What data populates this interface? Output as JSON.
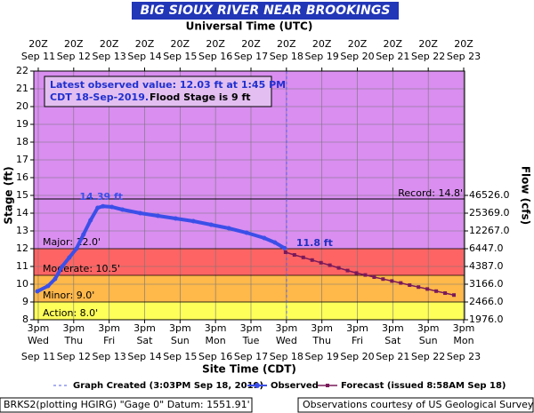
{
  "chart_data": {
    "type": "hydrograph",
    "title": "BIG SIOUX RIVER NEAR BROOKINGS",
    "top_axis_title": "Universal Time (UTC)",
    "x_axis_title": "Site Time (CDT)",
    "y_axis_title": "Stage (ft)",
    "y2_axis_title": "Flow (cfs)",
    "xlim": [
      11.5,
      23.65
    ],
    "xticks": [
      {
        "value": 11.625,
        "label": "3pm"
      },
      {
        "value": 12.625,
        "label": "3pm"
      },
      {
        "value": 13.625,
        "label": "3pm"
      },
      {
        "value": 14.625,
        "label": "3pm"
      },
      {
        "value": 15.625,
        "label": "3pm"
      },
      {
        "value": 16.625,
        "label": "3pm"
      },
      {
        "value": 17.625,
        "label": "3pm"
      },
      {
        "value": 18.625,
        "label": "3pm"
      },
      {
        "value": 19.625,
        "label": "3pm"
      },
      {
        "value": 20.625,
        "label": "3pm"
      },
      {
        "value": 21.625,
        "label": "3pm"
      },
      {
        "value": 22.625,
        "label": "3pm"
      },
      {
        "value": 23.625,
        "label": "3pm"
      }
    ],
    "x_tick_days": [
      "Wed",
      "Thu",
      "Fri",
      "Sat",
      "Sun",
      "Mon",
      "Tue",
      "Wed",
      "Thu",
      "Fri",
      "Sat",
      "Sun",
      "Mon"
    ],
    "x_tick_dates": [
      "Sep 11",
      "Sep 12",
      "Sep 13",
      "Sep 14",
      "Sep 15",
      "Sep 16",
      "Sep 17",
      "Sep 18",
      "Sep 19",
      "Sep 20",
      "Sep 21",
      "Sep 22",
      "Sep 23"
    ],
    "top_x_tick_labels": [
      "20Z",
      "20Z",
      "20Z",
      "20Z",
      "20Z",
      "20Z",
      "20Z",
      "20Z",
      "20Z",
      "20Z",
      "20Z",
      "20Z",
      "20Z"
    ],
    "ylim": [
      8,
      22
    ],
    "yticks": [
      8,
      9,
      10,
      11,
      12,
      13,
      14,
      15,
      16,
      17,
      18,
      19,
      20,
      21,
      22
    ],
    "y2ticks": [
      {
        "value": 46526,
        "label": "46526.0"
      },
      {
        "value": 25369,
        "label": "25369.0"
      },
      {
        "value": 12267,
        "label": "12267.0"
      },
      {
        "value": 6447,
        "label": "6447.0"
      },
      {
        "value": 4387,
        "label": "4387.0"
      },
      {
        "value": 3166,
        "label": "3166.0"
      },
      {
        "value": 2466,
        "label": "2466.0"
      },
      {
        "value": 1976,
        "label": "1976.0"
      }
    ],
    "rating_stage": [
      15,
      14,
      13,
      12,
      11,
      10,
      9,
      8
    ],
    "grid": true,
    "background_color": "#d98ef0",
    "thresholds": [
      {
        "label": "Action: 8.0'",
        "value": 8,
        "color": "#ffff5a"
      },
      {
        "label": "Minor: 9.0'",
        "value": 9,
        "color": "#ffb84a"
      },
      {
        "label": "Moderate: 10.5'",
        "value": 10.5,
        "color": "#ff6464"
      },
      {
        "label": "Major: 12.0'",
        "value": 12,
        "color": "#d98ef0"
      }
    ],
    "record": {
      "label": "Record: 14.8'",
      "value": 14.8
    },
    "created_x": 18.627,
    "annotation": [
      "Latest observed value: 12.03 ft at 1:45 PM",
      "CDT 18-Sep-2019.",
      "Flood Stage is 9 ft"
    ],
    "series": [
      {
        "name": "Observed",
        "color": "#3b4fe8",
        "x": [
          11.6,
          11.9,
          12.1,
          12.3,
          12.5,
          12.7,
          12.9,
          13.1,
          13.3,
          13.45,
          13.7,
          14.0,
          14.5,
          15.0,
          15.5,
          16.0,
          16.5,
          17.0,
          17.5,
          18.0,
          18.3,
          18.57
        ],
        "values": [
          9.6,
          9.9,
          10.3,
          11.0,
          11.5,
          12.0,
          12.8,
          13.6,
          14.3,
          14.39,
          14.35,
          14.2,
          14.0,
          13.85,
          13.7,
          13.55,
          13.35,
          13.15,
          12.9,
          12.6,
          12.35,
          12.03
        ],
        "value_labels": [
          null,
          null,
          null,
          null,
          null,
          null,
          null,
          null,
          null,
          "14.39 ft",
          null,
          null,
          null,
          null,
          null,
          null,
          null,
          null,
          null,
          null,
          null,
          null
        ]
      },
      {
        "name": "Forecast (issued 8:58AM Sep 18)",
        "color": "#7a1a5a",
        "x": [
          18.6,
          18.85,
          19.1,
          19.35,
          19.6,
          19.85,
          20.1,
          20.35,
          20.6,
          20.85,
          21.1,
          21.35,
          21.6,
          21.85,
          22.1,
          22.35,
          22.6,
          22.85,
          23.1,
          23.35
        ],
        "values": [
          11.8,
          11.65,
          11.51,
          11.36,
          11.21,
          11.07,
          10.92,
          10.77,
          10.63,
          10.52,
          10.4,
          10.29,
          10.18,
          10.07,
          9.95,
          9.84,
          9.73,
          9.61,
          9.5,
          9.39
        ],
        "value_labels": [
          "11.8 ft",
          null,
          null,
          null,
          null,
          null,
          null,
          null,
          null,
          null,
          null,
          null,
          null,
          null,
          null,
          null,
          null,
          null,
          null,
          null
        ]
      }
    ],
    "created_legend": "Graph Created (3:03PM Sep 18, 2019)",
    "footer_left": "BRKS2(plotting HGIRG) \"Gage 0\" Datum: 1551.91'",
    "footer_right": "Observations courtesy of US Geological Survey"
  }
}
